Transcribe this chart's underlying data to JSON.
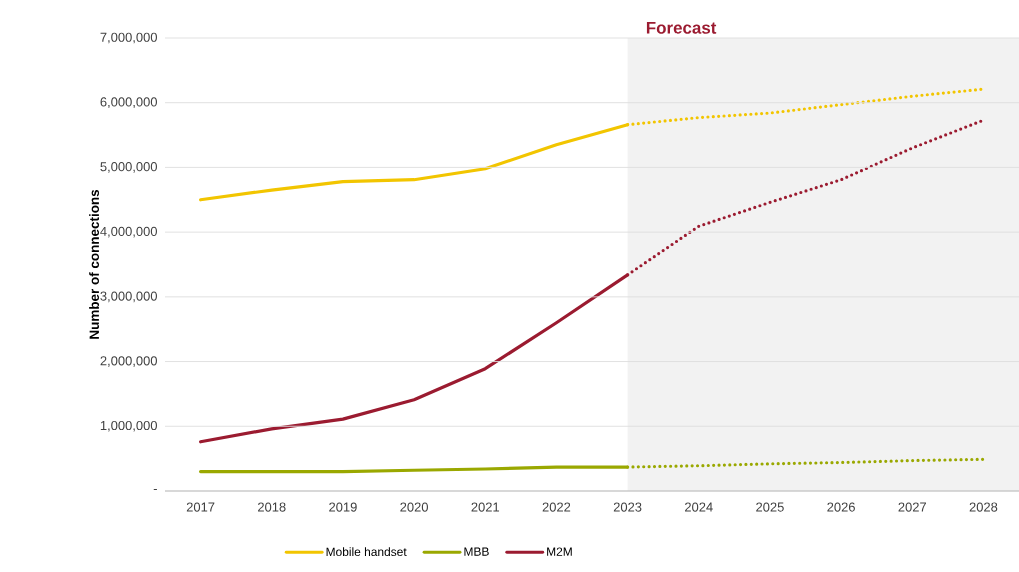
{
  "chart_data": {
    "type": "line",
    "ylabel": "Number of connections",
    "x": [
      2017,
      2018,
      2019,
      2020,
      2021,
      2022,
      2023,
      2024,
      2025,
      2026,
      2027,
      2028
    ],
    "series": [
      {
        "name": "Mobile handset",
        "color": "#f2c500",
        "line_style": "solid",
        "values": [
          4500000,
          4650000,
          4780000,
          4810000,
          4980000,
          5350000,
          5660000,
          null,
          null,
          null,
          null,
          null
        ]
      },
      {
        "name": "MBB",
        "color": "#9aa800",
        "line_style": "solid",
        "values": [
          300000,
          300000,
          300000,
          320000,
          340000,
          370000,
          370000,
          null,
          null,
          null,
          null,
          null
        ]
      },
      {
        "name": "M2M",
        "color": "#9b1b30",
        "line_style": "solid",
        "values": [
          760000,
          960000,
          1110000,
          1410000,
          1890000,
          2600000,
          3340000,
          null,
          null,
          null,
          null,
          null
        ]
      },
      {
        "color": "#f2c500",
        "line_style": "dotted",
        "values": [
          null,
          null,
          null,
          null,
          null,
          null,
          5660000,
          5770000,
          5840000,
          5970000,
          6100000,
          6210000
        ]
      },
      {
        "color": "#9aa800",
        "line_style": "dotted",
        "values": [
          null,
          null,
          null,
          null,
          null,
          null,
          370000,
          390000,
          420000,
          440000,
          470000,
          490000
        ]
      },
      {
        "color": "#9b1b30",
        "line_style": "dotted",
        "values": [
          null,
          null,
          null,
          null,
          null,
          null,
          3340000,
          4090000,
          4460000,
          4810000,
          5300000,
          5730000
        ]
      }
    ],
    "xlim": [
      2016.5,
      2028.5
    ],
    "ylim": [
      0,
      7000000
    ],
    "xticks": [
      2017,
      2018,
      2019,
      2020,
      2021,
      2022,
      2023,
      2024,
      2025,
      2026,
      2027,
      2028
    ],
    "yticks": [
      {
        "value": 0,
        "label": "-"
      },
      {
        "value": 1000000,
        "label": "1,000,000"
      },
      {
        "value": 2000000,
        "label": "2,000,000"
      },
      {
        "value": 3000000,
        "label": "3,000,000"
      },
      {
        "value": 4000000,
        "label": "4,000,000"
      },
      {
        "value": 5000000,
        "label": "5,000,000"
      },
      {
        "value": 6000000,
        "label": "6,000,000"
      },
      {
        "value": 7000000,
        "label": "7,000,000"
      }
    ],
    "bands": [
      {
        "axis": "x",
        "from": 2023,
        "to": 2028.5,
        "label": "Forecast",
        "color": "#f2f2f2"
      }
    ],
    "grid": "y",
    "legend": "bottom"
  }
}
